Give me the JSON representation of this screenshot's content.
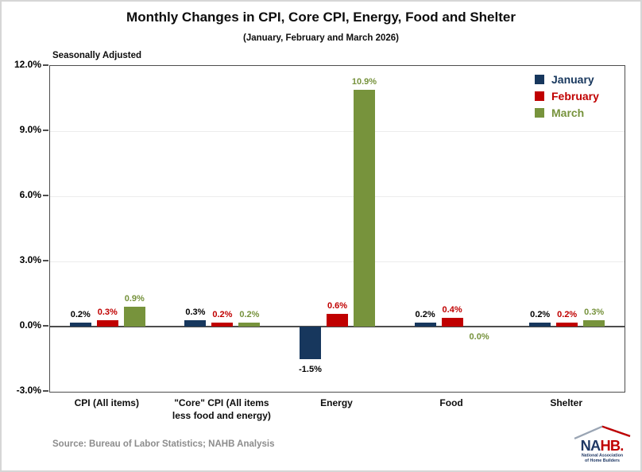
{
  "figure": {
    "title": "Monthly Changes in CPI, Core CPI, Energy, Food and Shelter",
    "subtitle": "(January, February and March 2026)",
    "note": "Seasonally Adjusted",
    "source": "Source: Bureau of Labor Statistics; NAHB Analysis"
  },
  "logo": {
    "na": "NA",
    "hb": "HB.",
    "tagline1": "National Association",
    "tagline2": "of Home Builders",
    "blue": "#1F3864",
    "red": "#C00000",
    "roof_gray": "#9aa5b4"
  },
  "chart_data": {
    "type": "bar",
    "title": "Monthly Changes in CPI, Core CPI, Energy, Food and Shelter",
    "subtitle": "(January, February and March 2026)",
    "categories": [
      "CPI (All items)",
      "\"Core\" CPI (All items less food and energy)",
      "Energy",
      "Food",
      "Shelter"
    ],
    "series": [
      {
        "name": "January",
        "color": "#17375D",
        "label_color": "#000000",
        "values": [
          0.2,
          0.3,
          -1.5,
          0.2,
          0.2
        ],
        "labels": [
          "0.2%",
          "0.3%",
          "-1.5%",
          "0.2%",
          "0.2%"
        ]
      },
      {
        "name": "February",
        "color": "#C00000",
        "label_color": "#C00000",
        "values": [
          0.3,
          0.2,
          0.6,
          0.4,
          0.2
        ],
        "labels": [
          "0.3%",
          "0.2%",
          "0.6%",
          "0.4%",
          "0.2%"
        ]
      },
      {
        "name": "March",
        "color": "#77933C",
        "label_color": "#76923C",
        "values": [
          0.9,
          0.2,
          10.9,
          0.0,
          0.3
        ],
        "labels": [
          "0.9%",
          "0.2%",
          "10.9%",
          "0.0%",
          "0.3%"
        ]
      }
    ],
    "ylim": [
      -3,
      12
    ],
    "y_ticks": [
      {
        "value": 12,
        "label": "12.0%"
      },
      {
        "value": 9,
        "label": "9.0%"
      },
      {
        "value": 6,
        "label": "6.0%"
      },
      {
        "value": 3,
        "label": "3.0%"
      },
      {
        "value": 0,
        "label": "0.0%"
      },
      {
        "value": -3,
        "label": "-3.0%"
      }
    ],
    "legend_position": "top-right",
    "grid": true,
    "grid_color": "#ececec",
    "axis_color": "#4d4d4d"
  }
}
